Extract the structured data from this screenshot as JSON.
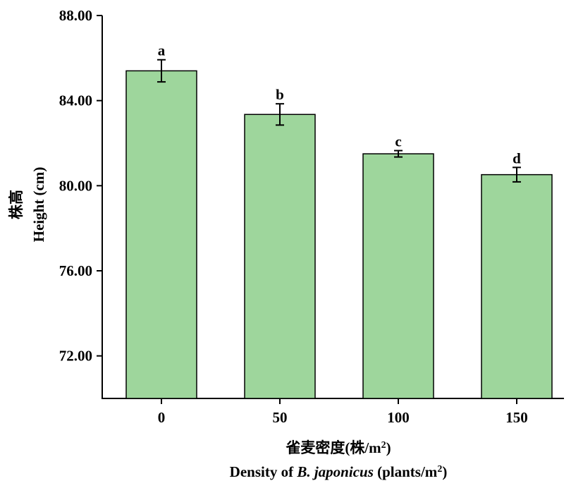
{
  "chart_data": {
    "type": "bar",
    "categories": [
      "0",
      "50",
      "100",
      "150"
    ],
    "series": [
      {
        "color": "#9ed69c",
        "values": [
          85.4,
          83.35,
          81.5,
          80.52
        ],
        "errors": [
          0.52,
          0.5,
          0.15,
          0.34
        ],
        "value_labels": [
          "a",
          "b",
          "c",
          "d"
        ]
      }
    ],
    "ylim": [
      70,
      88
    ],
    "yticks": [
      {
        "value": 72,
        "label": "72.00"
      },
      {
        "value": 76,
        "label": "76.00"
      },
      {
        "value": 80,
        "label": "80.00"
      },
      {
        "value": 84,
        "label": "84.00"
      },
      {
        "value": 88,
        "label": "88.00"
      }
    ],
    "y_label": [
      "株高",
      "Height (cm)"
    ],
    "x_label": [
      [
        {
          "text": "雀麦密度(株/m"
        },
        {
          "text": "2",
          "sup": true
        },
        {
          "text": ")"
        }
      ],
      [
        {
          "text": "Density of "
        },
        {
          "text": "B. japonicus",
          "italic": true
        },
        {
          "text": " (plants/m"
        },
        {
          "text": "2",
          "sup": true
        },
        {
          "text": ")"
        }
      ]
    ],
    "grid": false
  }
}
